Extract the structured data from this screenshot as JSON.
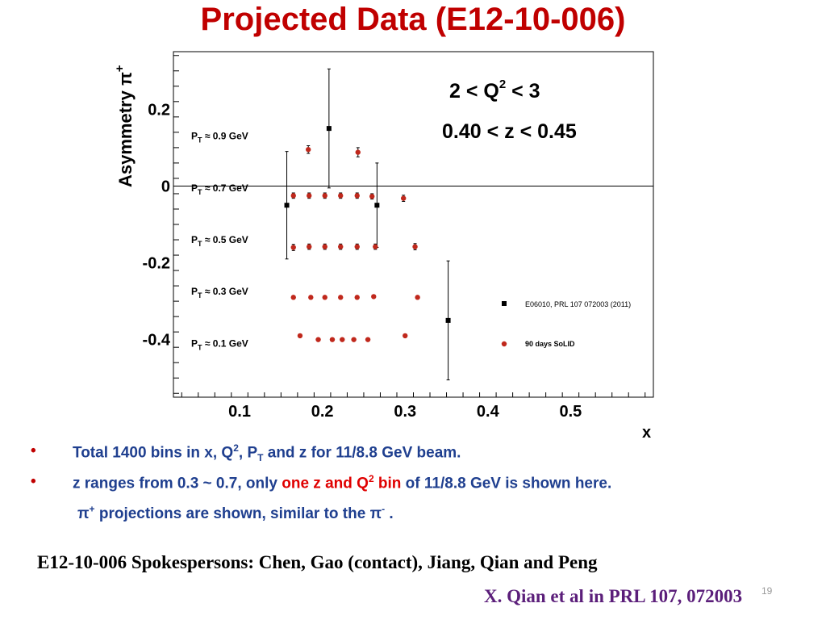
{
  "slide": {
    "title": "Projected Data (E12-10-006)",
    "page_number": "19"
  },
  "bullets": [
    {
      "parts": [
        "Total 1400 bins in x, Q",
        "2",
        ", P",
        "T",
        " and z for 11/8.8 GeV beam."
      ]
    },
    {
      "parts": [
        "z ranges from 0.3 ~ 0.7, only ",
        "one z and Q",
        "2",
        " bin",
        " of 11/8.8 GeV is shown here."
      ]
    },
    {
      "parts": [
        "π",
        "+",
        " projections are shown, similar to the π",
        "-",
        " ."
      ]
    }
  ],
  "bullet_marker": "•",
  "footer": {
    "spokespersons": "E12-10-006 Spokespersons: Chen, Gao (contact), Jiang, Qian and Peng",
    "reference": "X. Qian et al in PRL 107, 072003"
  },
  "colors": {
    "title": "#c00000",
    "bullet_text": "#1f3f8f",
    "highlight": "#e00000",
    "reference": "#5b1e7a",
    "solid_marker": "#c0281c",
    "e06010_marker": "#000000"
  },
  "chart_data": {
    "type": "scatter",
    "xlabel": "x",
    "ylabel": "Asymmetry π",
    "ylabel_sup": "+",
    "xlim": [
      0.02,
      0.6
    ],
    "ylim": [
      -0.55,
      0.35
    ],
    "xticks": [
      0.1,
      0.2,
      0.3,
      0.4,
      0.5
    ],
    "xtick_labels": [
      "0.1",
      "0.2",
      "0.3",
      "0.4",
      "0.5"
    ],
    "yticks": [
      0.2,
      0,
      -0.2,
      -0.4
    ],
    "ytick_labels": [
      "0.2",
      "0",
      "-0.2",
      "-0.4"
    ],
    "grid": false,
    "zero_line": true,
    "annotations": {
      "q2_range": {
        "pre": "2 < Q",
        "sup": "2",
        "post": " < 3"
      },
      "z_range": "0.40 < z < 0.45"
    },
    "pt_labels": [
      {
        "text": "P",
        "sub": "T",
        "rest": " ≈ 0.9 GeV",
        "y": 0.13
      },
      {
        "text": "P",
        "sub": "T",
        "rest": " ≈ 0.7 GeV",
        "y": -0.005
      },
      {
        "text": "P",
        "sub": "T",
        "rest": " ≈ 0.5 GeV",
        "y": -0.14
      },
      {
        "text": "P",
        "sub": "T",
        "rest": " ≈ 0.3 GeV",
        "y": -0.275
      },
      {
        "text": "P",
        "sub": "T",
        "rest": " ≈ 0.1 GeV",
        "y": -0.41
      }
    ],
    "legend": {
      "placement": "bottom-right",
      "entries": [
        "E06010, PRL 107 072003 (2011)",
        "90 days SoLID"
      ]
    },
    "series": [
      {
        "name": "E06010, PRL 107 072003 (2011)",
        "marker": "square",
        "points": [
          {
            "x": 0.157,
            "y": -0.05,
            "err": 0.14
          },
          {
            "x": 0.208,
            "y": 0.15,
            "err": 0.155
          },
          {
            "x": 0.266,
            "y": -0.05,
            "err": 0.11
          },
          {
            "x": 0.352,
            "y": -0.35,
            "err": 0.155
          }
        ]
      },
      {
        "name": "90 days SoLID",
        "marker": "circle",
        "points": [
          {
            "x": 0.183,
            "y": 0.095,
            "err": 0.01
          },
          {
            "x": 0.243,
            "y": 0.088,
            "err": 0.012
          },
          {
            "x": 0.165,
            "y": -0.025,
            "err": 0.007
          },
          {
            "x": 0.184,
            "y": -0.025,
            "err": 0.007
          },
          {
            "x": 0.203,
            "y": -0.025,
            "err": 0.007
          },
          {
            "x": 0.222,
            "y": -0.025,
            "err": 0.007
          },
          {
            "x": 0.242,
            "y": -0.025,
            "err": 0.007
          },
          {
            "x": 0.26,
            "y": -0.027,
            "err": 0.007
          },
          {
            "x": 0.298,
            "y": -0.032,
            "err": 0.008
          },
          {
            "x": 0.165,
            "y": -0.16,
            "err": 0.008
          },
          {
            "x": 0.184,
            "y": -0.158,
            "err": 0.007
          },
          {
            "x": 0.203,
            "y": -0.158,
            "err": 0.007
          },
          {
            "x": 0.222,
            "y": -0.158,
            "err": 0.007
          },
          {
            "x": 0.242,
            "y": -0.158,
            "err": 0.007
          },
          {
            "x": 0.264,
            "y": -0.158,
            "err": 0.007
          },
          {
            "x": 0.312,
            "y": -0.158,
            "err": 0.008
          },
          {
            "x": 0.165,
            "y": -0.29,
            "err": 0
          },
          {
            "x": 0.186,
            "y": -0.29,
            "err": 0
          },
          {
            "x": 0.203,
            "y": -0.29,
            "err": 0
          },
          {
            "x": 0.222,
            "y": -0.29,
            "err": 0
          },
          {
            "x": 0.242,
            "y": -0.29,
            "err": 0
          },
          {
            "x": 0.262,
            "y": -0.288,
            "err": 0
          },
          {
            "x": 0.315,
            "y": -0.29,
            "err": 0
          },
          {
            "x": 0.173,
            "y": -0.39,
            "err": 0
          },
          {
            "x": 0.195,
            "y": -0.4,
            "err": 0
          },
          {
            "x": 0.212,
            "y": -0.4,
            "err": 0
          },
          {
            "x": 0.224,
            "y": -0.4,
            "err": 0
          },
          {
            "x": 0.238,
            "y": -0.4,
            "err": 0
          },
          {
            "x": 0.255,
            "y": -0.4,
            "err": 0
          },
          {
            "x": 0.3,
            "y": -0.39,
            "err": 0
          }
        ]
      }
    ]
  }
}
